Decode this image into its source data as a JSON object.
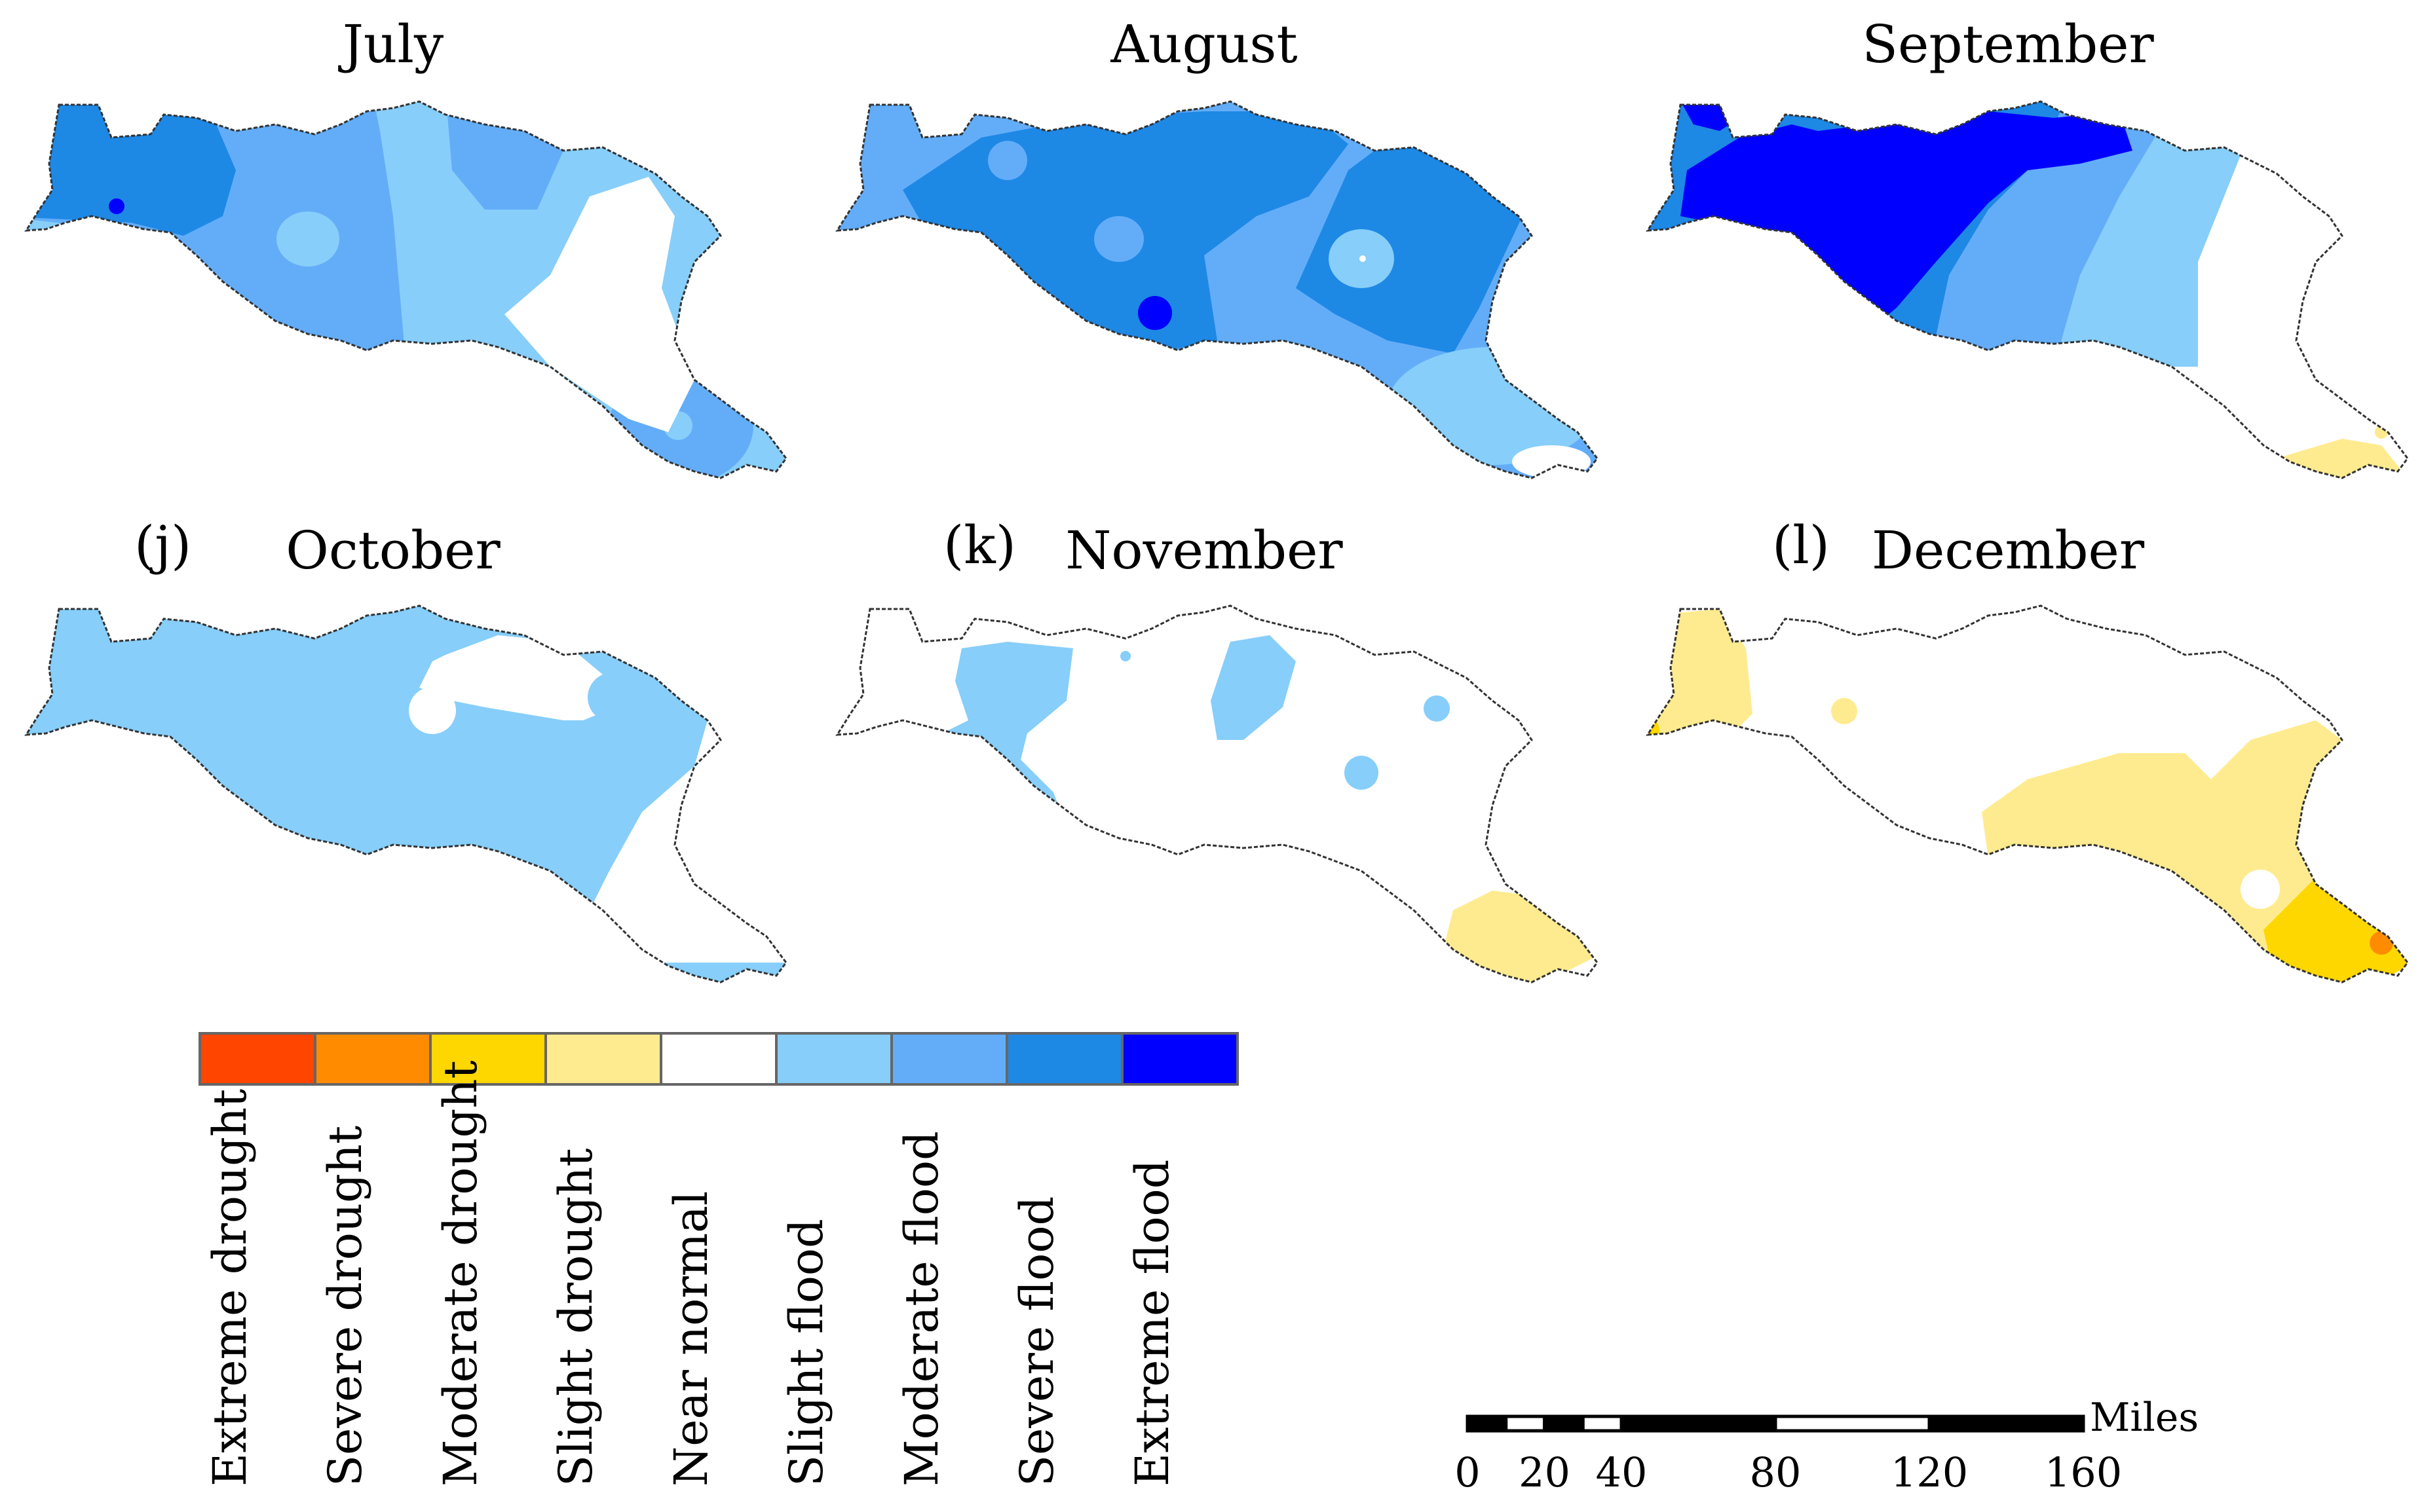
{
  "panels": [
    {
      "id": "july",
      "title": "July",
      "tag": ""
    },
    {
      "id": "august",
      "title": "August",
      "tag": ""
    },
    {
      "id": "september",
      "title": "September",
      "tag": ""
    },
    {
      "id": "october",
      "title": "October",
      "tag": "(j)"
    },
    {
      "id": "november",
      "title": "November",
      "tag": "(k)"
    },
    {
      "id": "december",
      "title": "December",
      "tag": "(l)"
    }
  ],
  "legend": {
    "classes": [
      {
        "label": "Extreme drought",
        "color": "#FF4500"
      },
      {
        "label": "Severe drought",
        "color": "#FF8C00"
      },
      {
        "label": "Moderate drought",
        "color": "#FFD700"
      },
      {
        "label": "Slight drought",
        "color": "#FFEB8F"
      },
      {
        "label": "Near normal",
        "color": "#FFFFFF"
      },
      {
        "label": "Slight flood",
        "color": "#87CEFA"
      },
      {
        "label": "Moderate flood",
        "color": "#63ADF8"
      },
      {
        "label": "Severe flood",
        "color": "#1E88E5"
      },
      {
        "label": "Extreme flood",
        "color": "#0000FF"
      }
    ]
  },
  "scale_bar": {
    "unit": "Miles",
    "ticks": [
      "0",
      "20",
      "40",
      "80",
      "120",
      "160"
    ]
  }
}
